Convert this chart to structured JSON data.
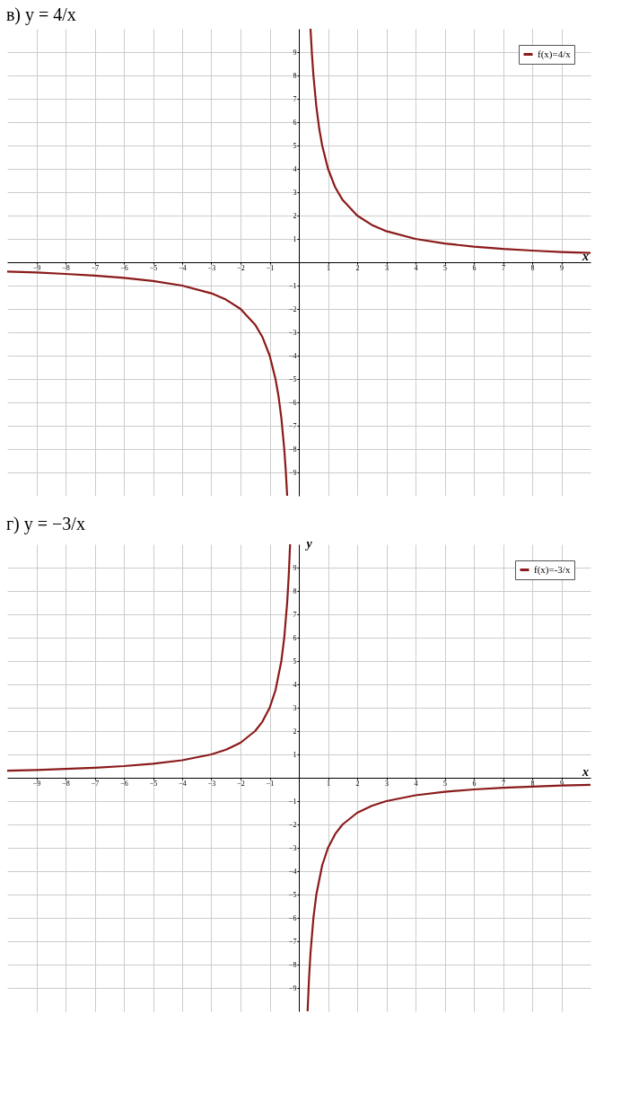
{
  "chart_data": [
    {
      "type": "line",
      "title": "в) y = 4/x",
      "xlabel": "x",
      "xlim": [
        -10,
        10
      ],
      "ylim": [
        -10,
        10
      ],
      "xticks": [
        -9,
        -8,
        -7,
        -6,
        -5,
        -4,
        -3,
        -2,
        -1,
        1,
        2,
        3,
        4,
        5,
        6,
        7,
        8,
        9
      ],
      "yticks": [
        -9,
        -8,
        -7,
        -6,
        -5,
        -4,
        -3,
        -2,
        -1,
        1,
        2,
        3,
        4,
        5,
        6,
        7,
        8,
        9
      ],
      "grid": true,
      "legend": "top right",
      "marker": "none",
      "line_style": "solid",
      "series": [
        {
          "name": "f(x)=4/x",
          "color": "#8b1a1a",
          "x": [
            -10,
            -9,
            -8,
            -7,
            -6,
            -5,
            -4,
            -3,
            -2.5,
            -2,
            -1.5,
            -1.25,
            -1,
            -0.8,
            -0.7,
            -0.6,
            -0.5,
            -0.45,
            -0.4,
            0,
            0.4,
            0.45,
            0.5,
            0.6,
            0.7,
            0.8,
            1,
            1.25,
            1.5,
            2,
            2.5,
            3,
            4,
            5,
            6,
            7,
            8,
            9,
            10
          ],
          "values": [
            -0.4,
            -0.44,
            -0.5,
            -0.57,
            -0.67,
            -0.8,
            -1,
            -1.33,
            -1.6,
            -2,
            -2.67,
            -3.2,
            -4,
            -5,
            -5.71,
            -6.67,
            -8,
            -8.89,
            -10,
            null,
            10,
            8.89,
            8,
            6.67,
            5.71,
            5,
            4,
            3.2,
            2.67,
            2,
            1.6,
            1.33,
            1,
            0.8,
            0.67,
            0.57,
            0.5,
            0.44,
            0.4
          ]
        }
      ]
    },
    {
      "type": "line",
      "title": "г) y = −3/x",
      "xlabel": "x",
      "ylabel": "y",
      "xlim": [
        -10,
        10
      ],
      "ylim": [
        -10,
        10
      ],
      "xticks": [
        -9,
        -8,
        -7,
        -6,
        -5,
        -4,
        -3,
        -2,
        -1,
        1,
        2,
        3,
        4,
        5,
        6,
        7,
        8,
        9
      ],
      "yticks": [
        -9,
        -8,
        -7,
        -6,
        -5,
        -4,
        -3,
        -2,
        -1,
        1,
        2,
        3,
        4,
        5,
        6,
        7,
        8,
        9
      ],
      "grid": true,
      "legend": "top right",
      "marker": "none",
      "line_style": "solid",
      "series": [
        {
          "name": "f(x)=-3/x",
          "color": "#8b1a1a",
          "x": [
            -10,
            -9,
            -8,
            -7,
            -6,
            -5,
            -4,
            -3,
            -2.5,
            -2,
            -1.5,
            -1.25,
            -1,
            -0.8,
            -0.6,
            -0.5,
            -0.4,
            -0.35,
            -0.3,
            0,
            0.3,
            0.35,
            0.4,
            0.5,
            0.6,
            0.8,
            1,
            1.25,
            1.5,
            2,
            2.5,
            3,
            4,
            5,
            6,
            7,
            8,
            9,
            10
          ],
          "values": [
            0.3,
            0.33,
            0.38,
            0.43,
            0.5,
            0.6,
            0.75,
            1,
            1.2,
            1.5,
            2,
            2.4,
            3,
            3.75,
            5,
            6,
            7.5,
            8.57,
            10,
            null,
            -10,
            -8.57,
            -7.5,
            -6,
            -5,
            -3.75,
            -3,
            -2.4,
            -2,
            -1.5,
            -1.2,
            -1,
            -0.75,
            -0.6,
            -0.5,
            -0.43,
            -0.38,
            -0.33,
            -0.3
          ]
        }
      ]
    }
  ]
}
